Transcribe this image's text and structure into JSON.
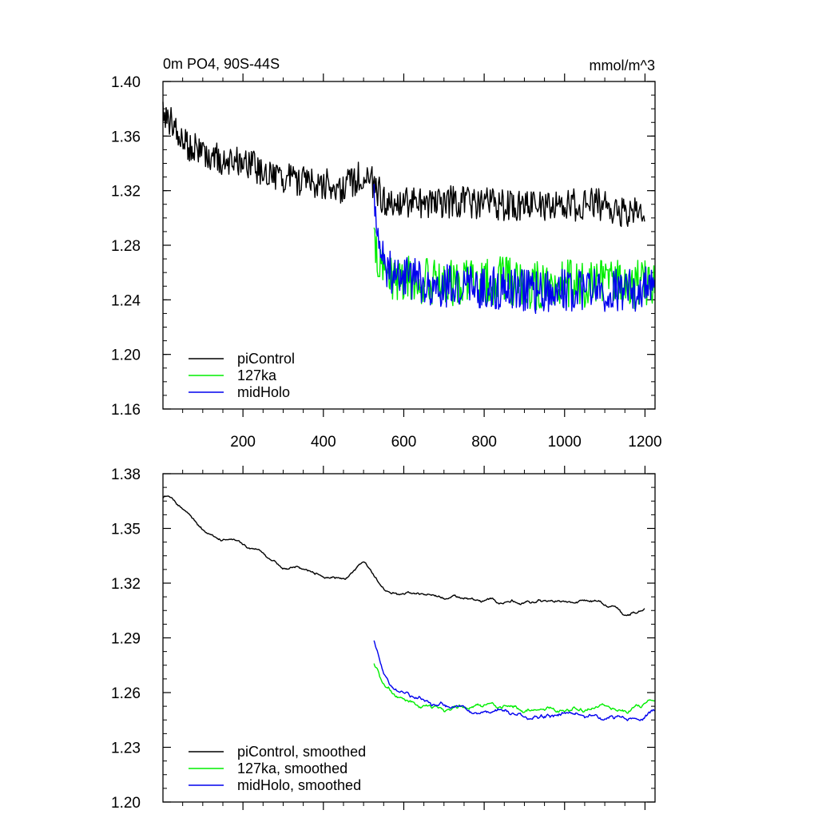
{
  "chart_data": [
    {
      "type": "line",
      "title": "0m PO4, 90S-44S",
      "units": "mmol/m^3",
      "xlim": [
        1,
        1225
      ],
      "ylim": [
        1.16,
        1.4
      ],
      "xticks": [
        200,
        400,
        600,
        800,
        1000,
        1200
      ],
      "xtick_labels": [
        "200",
        "400",
        "600",
        "800",
        "1000",
        "1200"
      ],
      "yticks": [
        1.16,
        1.2,
        1.24,
        1.28,
        1.32,
        1.36,
        1.4
      ],
      "ytick_labels": [
        "1.16",
        "1.20",
        "1.24",
        "1.28",
        "1.32",
        "1.36",
        "1.40"
      ],
      "legend_position": "bottom-left",
      "series": [
        {
          "name": "piControl",
          "color": "#000000",
          "x": [
            1,
            50,
            100,
            150,
            200,
            250,
            300,
            350,
            400,
            450,
            500,
            520,
            550,
            600,
            650,
            700,
            750,
            800,
            850,
            900,
            950,
            1000,
            1050,
            1100,
            1130,
            1150,
            1170,
            1200
          ],
          "y": [
            1.378,
            1.357,
            1.347,
            1.343,
            1.34,
            1.335,
            1.33,
            1.327,
            1.325,
            1.322,
            1.333,
            1.326,
            1.314,
            1.312,
            1.312,
            1.312,
            1.311,
            1.311,
            1.31,
            1.31,
            1.309,
            1.309,
            1.31,
            1.31,
            1.304,
            1.305,
            1.306,
            1.305
          ],
          "noise": 0.012
        },
        {
          "name": "127ka",
          "color": "#00ee00",
          "x": [
            526,
            535,
            545,
            560,
            600,
            650,
            700,
            750,
            800,
            850,
            900,
            950,
            1000,
            1050,
            1100,
            1150,
            1200,
            1225
          ],
          "y": [
            1.282,
            1.275,
            1.265,
            1.259,
            1.256,
            1.253,
            1.251,
            1.253,
            1.252,
            1.254,
            1.25,
            1.251,
            1.252,
            1.251,
            1.252,
            1.251,
            1.252,
            1.255
          ],
          "noise": 0.018
        },
        {
          "name": "midHolo",
          "color": "#0000ee",
          "x": [
            526,
            530,
            540,
            560,
            600,
            650,
            700,
            750,
            800,
            850,
            900,
            950,
            1000,
            1050,
            1100,
            1150,
            1200,
            1225
          ],
          "y": [
            1.315,
            1.298,
            1.276,
            1.262,
            1.257,
            1.253,
            1.25,
            1.25,
            1.249,
            1.249,
            1.246,
            1.246,
            1.247,
            1.247,
            1.247,
            1.246,
            1.248,
            1.249
          ],
          "noise": 0.016
        }
      ]
    },
    {
      "type": "line",
      "title": "",
      "xlim": [
        1,
        1225
      ],
      "ylim": [
        1.2,
        1.38
      ],
      "yticks": [
        1.2,
        1.23,
        1.26,
        1.29,
        1.32,
        1.35,
        1.38
      ],
      "ytick_labels": [
        "1.20",
        "1.23",
        "1.26",
        "1.29",
        "1.32",
        "1.35",
        "1.38"
      ],
      "xticks": [
        200,
        400,
        600,
        800,
        1000,
        1200
      ],
      "legend_position": "bottom-left",
      "series": [
        {
          "name": "piControl, smoothed",
          "color": "#000000",
          "x": [
            1,
            50,
            100,
            150,
            200,
            250,
            300,
            350,
            400,
            450,
            500,
            520,
            550,
            600,
            650,
            700,
            750,
            800,
            850,
            900,
            950,
            1000,
            1050,
            1100,
            1130,
            1150,
            1170,
            1200
          ],
          "y": [
            1.37,
            1.362,
            1.348,
            1.344,
            1.341,
            1.336,
            1.33,
            1.327,
            1.325,
            1.322,
            1.332,
            1.326,
            1.315,
            1.314,
            1.314,
            1.313,
            1.312,
            1.311,
            1.31,
            1.31,
            1.31,
            1.31,
            1.31,
            1.309,
            1.307,
            1.3,
            1.304,
            1.307
          ],
          "noise": 0.004
        },
        {
          "name": "127ka, smoothed",
          "color": "#00ee00",
          "x": [
            526,
            535,
            550,
            580,
            620,
            660,
            700,
            750,
            800,
            850,
            900,
            950,
            1000,
            1050,
            1100,
            1150,
            1200,
            1225
          ],
          "y": [
            1.281,
            1.272,
            1.262,
            1.258,
            1.255,
            1.252,
            1.25,
            1.253,
            1.253,
            1.253,
            1.25,
            1.251,
            1.251,
            1.251,
            1.252,
            1.25,
            1.253,
            1.256
          ],
          "noise": 0.006
        },
        {
          "name": "midHolo, smoothed",
          "color": "#0000ee",
          "x": [
            526,
            532,
            545,
            570,
            610,
            650,
            700,
            750,
            800,
            850,
            900,
            950,
            1000,
            1050,
            1100,
            1150,
            1200,
            1225
          ],
          "y": [
            1.3,
            1.285,
            1.271,
            1.263,
            1.258,
            1.256,
            1.252,
            1.251,
            1.25,
            1.249,
            1.247,
            1.247,
            1.247,
            1.248,
            1.247,
            1.247,
            1.248,
            1.249
          ],
          "noise": 0.006
        }
      ]
    }
  ]
}
